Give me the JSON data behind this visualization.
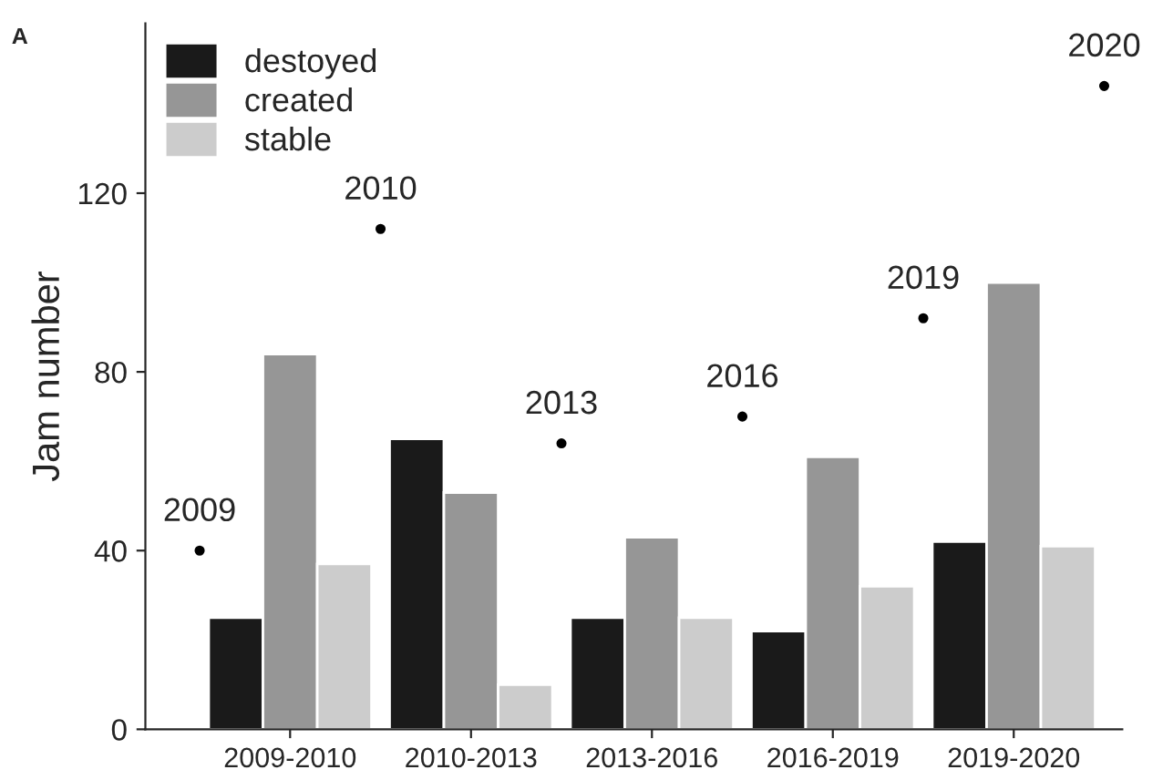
{
  "chart_data": {
    "type": "bar",
    "ylabel": "Jam number",
    "categories": [
      "2009-2010",
      "2010-2013",
      "2013-2016",
      "2016-2019",
      "2019-2020"
    ],
    "series": [
      {
        "name": "destoyed",
        "color": "#1a1a1a",
        "values": [
          25,
          65,
          25,
          22,
          42
        ]
      },
      {
        "name": "created",
        "color": "#969696",
        "values": [
          84,
          53,
          43,
          61,
          100
        ]
      },
      {
        "name": "stable",
        "color": "#cccccc",
        "values": [
          37,
          10,
          25,
          32,
          41
        ]
      }
    ],
    "ylim": [
      0,
      158
    ],
    "yticks": [
      0,
      40,
      80,
      120
    ],
    "legend": "top left",
    "grid": false,
    "annotations": [
      "A",
      {
        "text": "2009",
        "y": 40
      },
      {
        "text": "2010",
        "y": 112
      },
      {
        "text": "2013",
        "y": 64
      },
      {
        "text": "2016",
        "y": 70
      },
      {
        "text": "2019",
        "y": 92
      },
      {
        "text": "2020",
        "y": 144
      }
    ]
  }
}
